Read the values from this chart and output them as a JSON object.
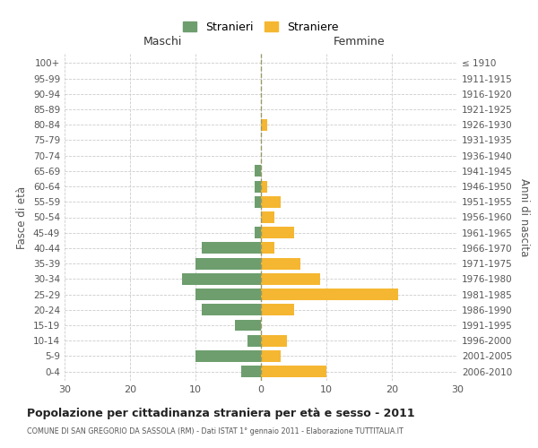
{
  "age_groups": [
    "0-4",
    "5-9",
    "10-14",
    "15-19",
    "20-24",
    "25-29",
    "30-34",
    "35-39",
    "40-44",
    "45-49",
    "50-54",
    "55-59",
    "60-64",
    "65-69",
    "70-74",
    "75-79",
    "80-84",
    "85-89",
    "90-94",
    "95-99",
    "100+"
  ],
  "birth_years": [
    "2006-2010",
    "2001-2005",
    "1996-2000",
    "1991-1995",
    "1986-1990",
    "1981-1985",
    "1976-1980",
    "1971-1975",
    "1966-1970",
    "1961-1965",
    "1956-1960",
    "1951-1955",
    "1946-1950",
    "1941-1945",
    "1936-1940",
    "1931-1935",
    "1926-1930",
    "1921-1925",
    "1916-1920",
    "1911-1915",
    "≤ 1910"
  ],
  "males": [
    3,
    10,
    2,
    4,
    9,
    10,
    12,
    10,
    9,
    1,
    0,
    1,
    1,
    1,
    0,
    0,
    0,
    0,
    0,
    0,
    0
  ],
  "females": [
    10,
    3,
    4,
    0,
    5,
    21,
    9,
    6,
    2,
    5,
    2,
    3,
    1,
    0,
    0,
    0,
    1,
    0,
    0,
    0,
    0
  ],
  "male_color": "#6e9e6e",
  "female_color": "#f5b731",
  "title": "Popolazione per cittadinanza straniera per età e sesso - 2011",
  "subtitle": "COMUNE DI SAN GREGORIO DA SASSOLA (RM) - Dati ISTAT 1° gennaio 2011 - Elaborazione TUTTITALIA.IT",
  "ylabel_left": "Fasce di età",
  "ylabel_right": "Anni di nascita",
  "xlabel_left": "Maschi",
  "xlabel_right": "Femmine",
  "legend_stranieri": "Stranieri",
  "legend_straniere": "Straniere",
  "xlim": 30,
  "background_color": "#ffffff",
  "grid_color": "#cccccc"
}
